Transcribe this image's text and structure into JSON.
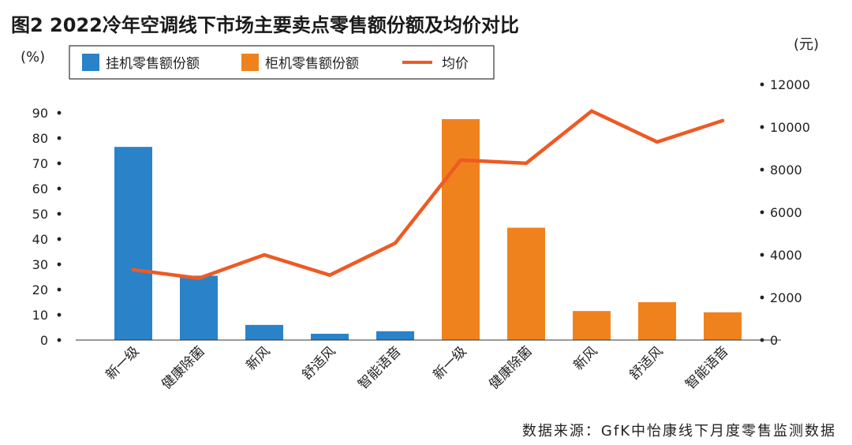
{
  "figure": {
    "title": "图2 2022冷年空调线下市场主要卖点零售额份额及均价对比",
    "left_unit": "(%)",
    "right_unit": "(元)",
    "source": "数据来源：GfK中怡康线下月度零售监测数据"
  },
  "colors": {
    "wall": "#2a82c8",
    "cabinet": "#f0821e",
    "avg": "#ee5a24"
  },
  "chart_data": {
    "type": "bar",
    "title": "图2 2022冷年空调线下市场主要卖点零售额份额及均价对比",
    "categories": [
      "新一级",
      "健康除菌",
      "新风",
      "舒适风",
      "智能语音",
      "新一级",
      "健康除菌",
      "新风",
      "舒适风",
      "智能语音"
    ],
    "series": [
      {
        "name": "挂机零售额份额",
        "axis": "left",
        "kind": "bar",
        "color": "#2a82c8",
        "values": [
          76.5,
          25.5,
          6.0,
          2.5,
          3.5,
          null,
          null,
          null,
          null,
          null
        ]
      },
      {
        "name": "柜机零售额份额",
        "axis": "left",
        "kind": "bar",
        "color": "#f0821e",
        "values": [
          null,
          null,
          null,
          null,
          null,
          87.5,
          44.5,
          11.5,
          15.0,
          11.0
        ]
      },
      {
        "name": "均价",
        "axis": "right",
        "kind": "line",
        "color": "#ee5a24",
        "values": [
          3300,
          2900,
          4000,
          3050,
          4550,
          8450,
          8300,
          10750,
          9300,
          10300
        ]
      }
    ],
    "left_axis": {
      "label": "(%)",
      "ylim": [
        0,
        100
      ],
      "ticks": [
        0,
        10,
        20,
        30,
        40,
        50,
        60,
        70,
        80,
        90
      ]
    },
    "right_axis": {
      "label": "(元)",
      "ylim": [
        0,
        12000
      ],
      "ticks": [
        0,
        2000,
        4000,
        6000,
        8000,
        10000,
        12000
      ]
    },
    "legend": {
      "placement": "top-left",
      "entries": [
        "挂机零售额份额",
        "柜机零售额份额",
        "均价"
      ]
    },
    "grid": false
  }
}
